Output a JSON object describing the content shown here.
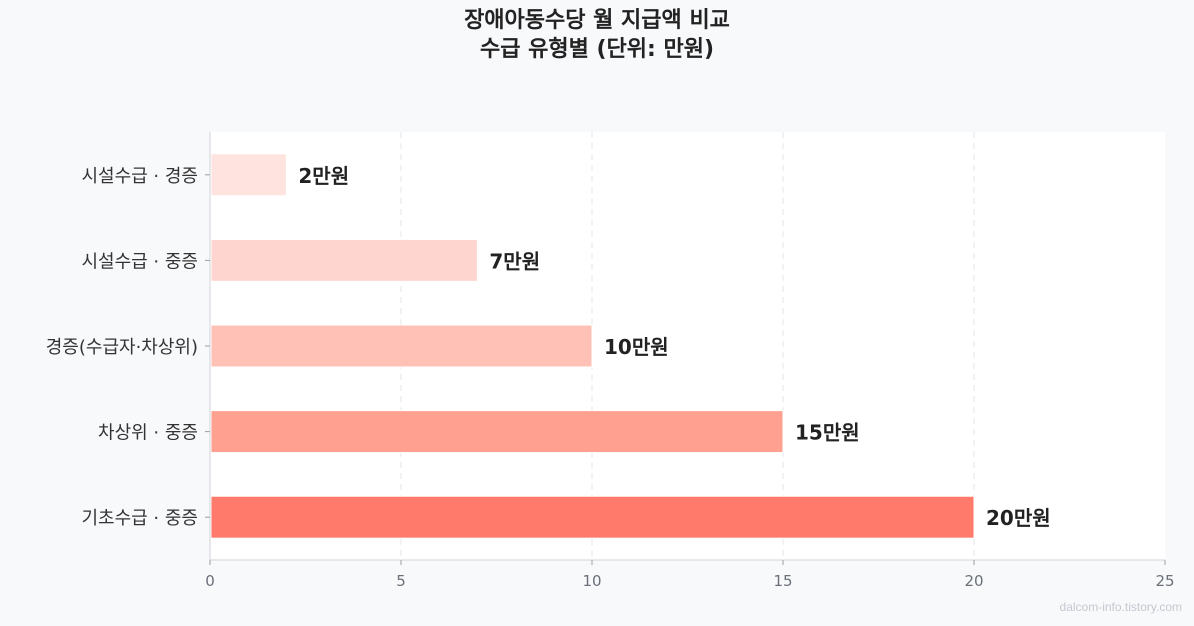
{
  "chart_data": {
    "type": "bar",
    "orientation": "horizontal",
    "title": "장애아동수당 월 지급액 비교",
    "subtitle": "수급 유형별 (단위: 만원)",
    "xlabel": "",
    "ylabel": "",
    "categories": [
      "시설수급 · 경증",
      "시설수급 · 중증",
      "경증(수급자·차상위)",
      "차상위 · 중증",
      "기초수급 · 중증"
    ],
    "values": [
      2,
      7,
      10,
      15,
      20
    ],
    "data_labels": [
      "2만원",
      "7만원",
      "10만원",
      "15만원",
      "20만원"
    ],
    "colors": [
      "#ffe3df",
      "#ffd6cf",
      "#ffc1b6",
      "#ffa090",
      "#ff7a6a"
    ],
    "xlim": [
      0,
      25
    ],
    "xticks": [
      0,
      5,
      10,
      15,
      20,
      25
    ],
    "grid": "vertical-dashed",
    "legend": "none"
  },
  "watermark": "dalcom-info.tistory.com"
}
